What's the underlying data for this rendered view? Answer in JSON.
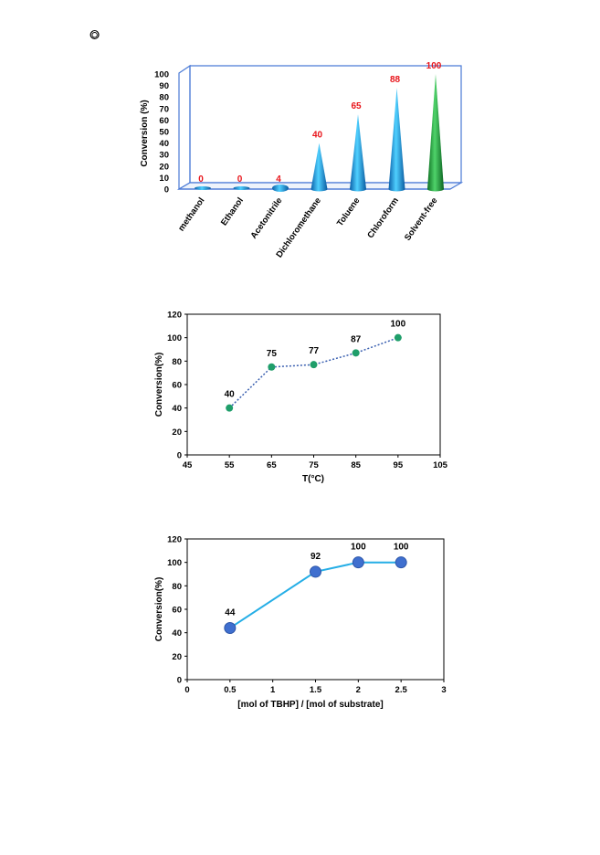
{
  "header_symbol": "⭗",
  "chart_data": [
    {
      "type": "bar",
      "style": "3d-cone",
      "categories": [
        "methanol",
        "Ethanol",
        "Acetonitrile",
        "Dichloromethane",
        "Toluene",
        "Chloroform",
        "Solvent-free"
      ],
      "values": [
        0,
        0,
        4,
        40,
        65,
        88,
        100
      ],
      "data_labels": [
        "0",
        "0",
        "4",
        "40",
        "65",
        "88",
        "100"
      ],
      "ylabel": "Conversion (%)",
      "xlabel": "",
      "ylim": [
        0,
        100
      ],
      "yticks": [
        "0",
        "10",
        "20",
        "30",
        "40",
        "50",
        "60",
        "70",
        "80",
        "90",
        "100"
      ],
      "colors": {
        "cone": "#1aa3e0",
        "highlight": "#1f9e3a",
        "label": "#e8151b",
        "frame": "#4a7ad6"
      }
    },
    {
      "type": "line",
      "style": "dotted-with-markers",
      "x": [
        55,
        65,
        75,
        85,
        95
      ],
      "y": [
        40,
        75,
        77,
        87,
        100
      ],
      "data_labels": [
        "40",
        "75",
        "77",
        "87",
        "100"
      ],
      "xlabel": "T(°C)",
      "ylabel": "Conversion(%)",
      "xlim": [
        45,
        105
      ],
      "ylim": [
        0,
        120
      ],
      "xticks": [
        "45",
        "55",
        "65",
        "75",
        "85",
        "95",
        "105"
      ],
      "yticks": [
        "0",
        "20",
        "40",
        "60",
        "80",
        "100",
        "120"
      ],
      "colors": {
        "marker": "#1f9e6a",
        "line": "#3a5fb0"
      }
    },
    {
      "type": "line",
      "style": "solid-with-markers",
      "x": [
        0.5,
        1.5,
        2,
        2.5
      ],
      "y": [
        44,
        92,
        100,
        100
      ],
      "data_labels": [
        "44",
        "92",
        "100",
        "100"
      ],
      "xlabel": "[mol of TBHP] / [mol of substrate]",
      "ylabel": "Conversion(%)",
      "xlim": [
        0,
        3
      ],
      "ylim": [
        0,
        120
      ],
      "xticks": [
        "0",
        "0.5",
        "1",
        "1.5",
        "2",
        "2.5",
        "3"
      ],
      "yticks": [
        "0",
        "20",
        "40",
        "60",
        "80",
        "100",
        "120"
      ],
      "colors": {
        "marker": "#3f6fcf",
        "line": "#25aee6"
      }
    }
  ]
}
